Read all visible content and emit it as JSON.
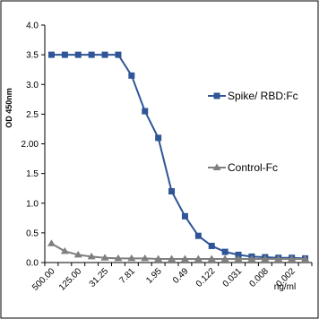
{
  "chart_data": {
    "type": "line",
    "xlabel": "ng/ml",
    "ylabel": "OD 450nm",
    "ylim": [
      0.0,
      4.0
    ],
    "y_ticks": [
      "0.0",
      "0.5",
      "1.0",
      "1.5",
      "2.00",
      "2.5",
      "3.0",
      "3.5",
      "4.0"
    ],
    "x_tick_labels": [
      "500.00",
      "125.00",
      "31.25",
      "7.81",
      "1.95",
      "0.49",
      "0.122",
      "0.031",
      "0.008",
      "0.002"
    ],
    "x": [
      "500.00",
      "250.00",
      "125.00",
      "62.50",
      "31.25",
      "15.63",
      "7.81",
      "3.91",
      "1.95",
      "0.98",
      "0.49",
      "0.24",
      "0.122",
      "0.061",
      "0.031",
      "0.015",
      "0.008",
      "0.004",
      "0.002",
      "0.001"
    ],
    "legend_position": "right",
    "grid": false,
    "series": [
      {
        "name": "Spike/ RBD:Fc",
        "color": "#2f5597",
        "marker": "square",
        "values": [
          3.5,
          3.5,
          3.5,
          3.5,
          3.5,
          3.5,
          3.15,
          2.55,
          2.1,
          1.2,
          0.78,
          0.45,
          0.28,
          0.18,
          0.13,
          0.1,
          0.09,
          0.08,
          0.08,
          0.07
        ]
      },
      {
        "name": "Control-Fc",
        "color": "#7f7f7f",
        "marker": "triangle",
        "values": [
          0.32,
          0.19,
          0.13,
          0.1,
          0.08,
          0.07,
          0.07,
          0.07,
          0.06,
          0.06,
          0.06,
          0.06,
          0.06,
          0.06,
          0.06,
          0.06,
          0.06,
          0.06,
          0.06,
          0.06
        ]
      }
    ]
  }
}
